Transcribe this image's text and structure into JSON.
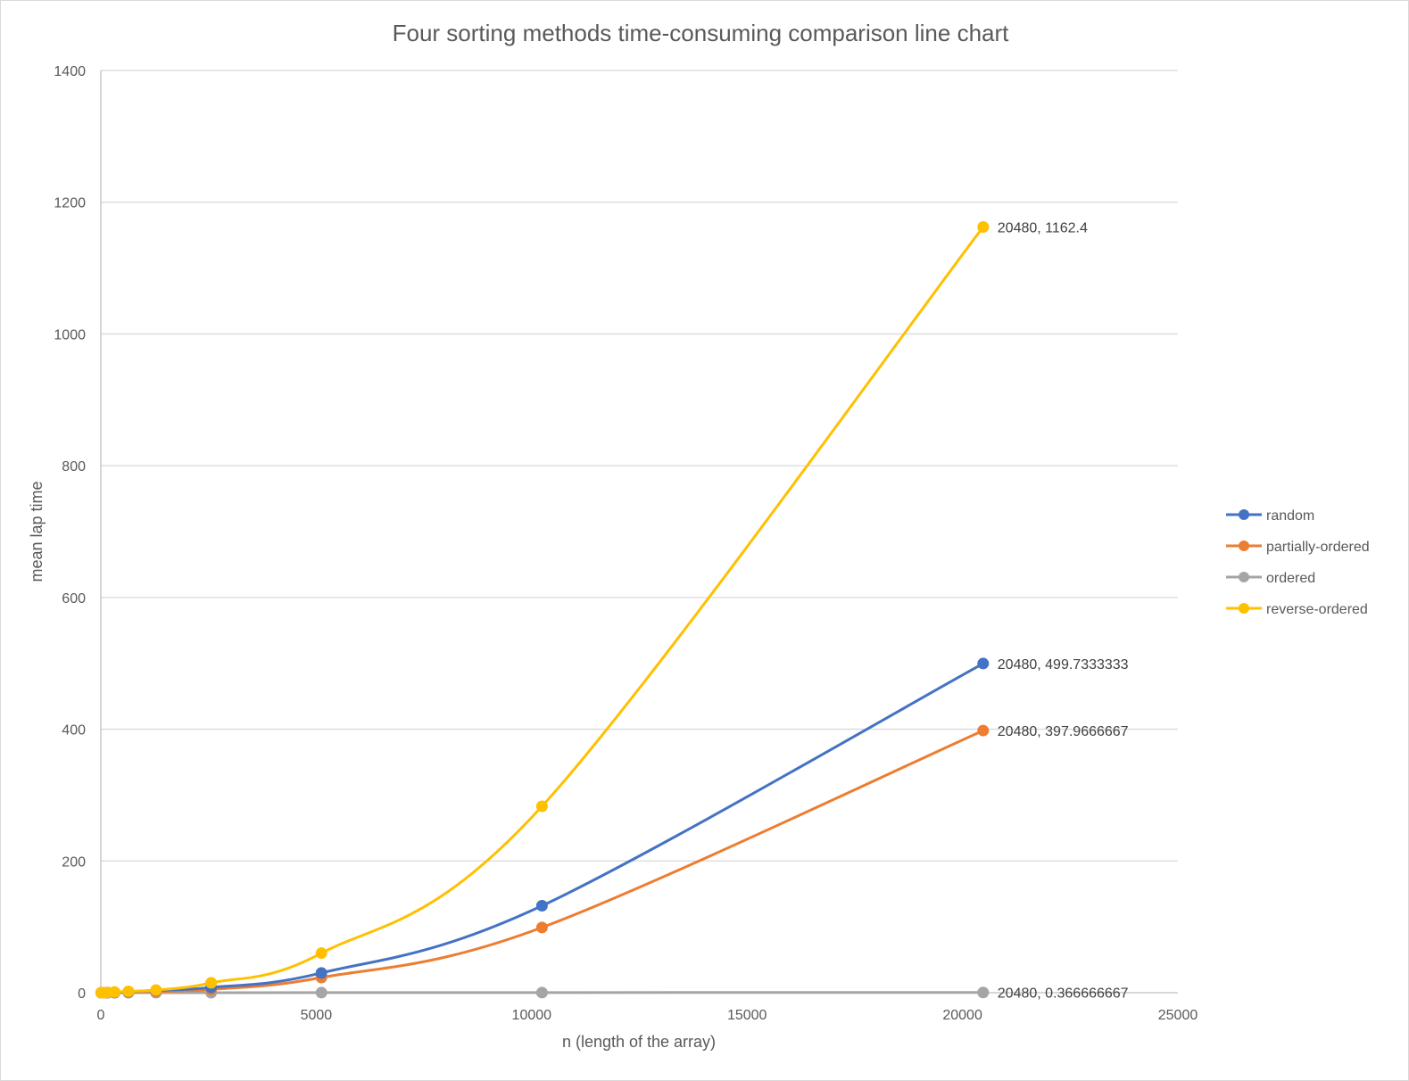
{
  "chart_data": {
    "type": "line",
    "title": "Four sorting methods time-consuming comparison line chart",
    "xlabel": "n (length of the array)",
    "ylabel": "mean lap time",
    "xlim": [
      0,
      25000
    ],
    "ylim": [
      0,
      1400
    ],
    "xticks": [
      0,
      5000,
      10000,
      15000,
      20000,
      25000
    ],
    "yticks": [
      0,
      200,
      400,
      600,
      800,
      1000,
      1200,
      1400
    ],
    "grid": true,
    "legend_position": "right",
    "smooth": true,
    "x": [
      10,
      20,
      40,
      80,
      160,
      320,
      640,
      1280,
      2560,
      5120,
      10240,
      20480
    ],
    "series": [
      {
        "name": "random",
        "color": "#4472c4",
        "values": [
          0,
          0,
          0,
          0,
          0.2,
          0.5,
          1.5,
          3.5,
          8,
          30,
          132,
          499.7333333
        ]
      },
      {
        "name": "partially-ordered",
        "color": "#ed7d31",
        "values": [
          0,
          0,
          0,
          0,
          0.1,
          0.3,
          1.0,
          2.0,
          5,
          23,
          99,
          397.9666667
        ]
      },
      {
        "name": "ordered",
        "color": "#a5a5a5",
        "values": [
          0,
          0,
          0,
          0,
          0,
          0,
          0,
          0,
          0,
          0.1,
          0.2,
          0.366666667
        ]
      },
      {
        "name": "reverse-ordered",
        "color": "#ffc000",
        "values": [
          0,
          0,
          0,
          0,
          0.4,
          1.0,
          2.0,
          4,
          15,
          60,
          283,
          1162.4
        ]
      }
    ],
    "data_labels": [
      {
        "series": "reverse-ordered",
        "text": "20480, 1162.4",
        "x": 20480,
        "y": 1162.4
      },
      {
        "series": "random",
        "text": "20480, 499.7333333",
        "x": 20480,
        "y": 499.7333333
      },
      {
        "series": "partially-ordered",
        "text": "20480, 397.9666667",
        "x": 20480,
        "y": 397.9666667
      },
      {
        "series": "ordered",
        "text": "20480, 0.366666667",
        "x": 20480,
        "y": 0.366666667
      }
    ]
  }
}
